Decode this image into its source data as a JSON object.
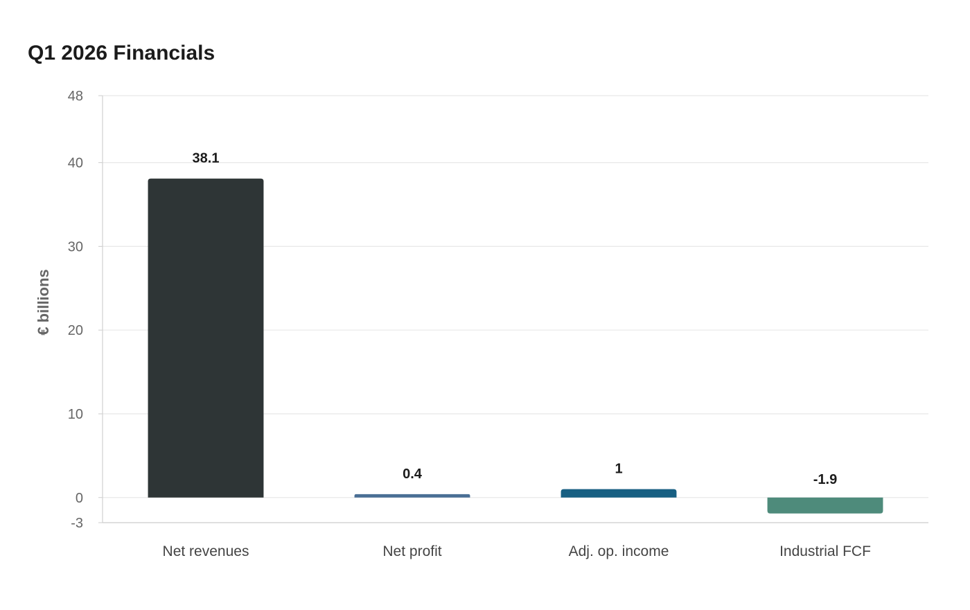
{
  "chart_data": {
    "type": "bar",
    "title": "Q1 2026 Financials",
    "ylabel": "€ billions",
    "xlabel": "",
    "categories": [
      "Net revenues",
      "Net profit",
      "Adj. op. income",
      "Industrial FCF"
    ],
    "values": [
      38.1,
      0.4,
      1,
      -1.9
    ],
    "value_labels": [
      "38.1",
      "0.4",
      "1",
      "-1.9"
    ],
    "colors": [
      "#2e3536",
      "#4a6f95",
      "#175f82",
      "#4e8b7b"
    ],
    "ylim": [
      -3,
      48
    ],
    "yticks": [
      -3,
      0,
      10,
      20,
      30,
      40,
      48
    ],
    "grid": true,
    "legend": "none"
  }
}
